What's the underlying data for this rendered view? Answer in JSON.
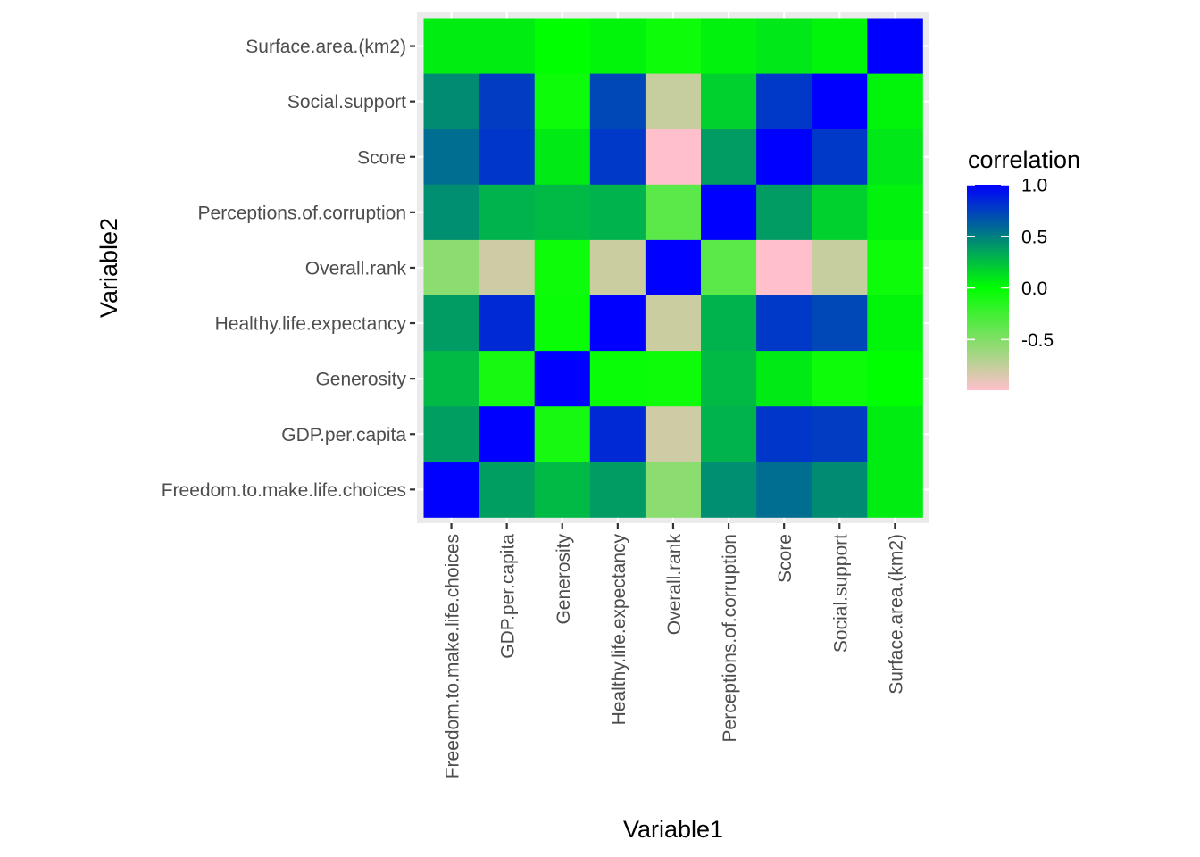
{
  "chart_data": {
    "type": "heatmap",
    "xlabel": "Variable1",
    "ylabel": "Variable2",
    "variables": [
      "Freedom.to.make.life.choices",
      "GDP.per.capita",
      "Generosity",
      "Healthy.life.expectancy",
      "Overall.rank",
      "Perceptions.of.corruption",
      "Score",
      "Social.support",
      "Surface.area.(km2)"
    ],
    "matrix": [
      [
        1.0,
        0.38,
        0.27,
        0.39,
        -0.54,
        0.44,
        0.57,
        0.45,
        0.07
      ],
      [
        0.38,
        1.0,
        -0.08,
        0.84,
        -0.8,
        0.3,
        0.79,
        0.76,
        0.07
      ],
      [
        0.27,
        -0.08,
        1.0,
        -0.03,
        -0.05,
        0.27,
        0.08,
        -0.05,
        0.0
      ],
      [
        0.39,
        0.84,
        -0.03,
        1.0,
        -0.78,
        0.3,
        0.78,
        0.72,
        0.04
      ],
      [
        -0.54,
        -0.8,
        -0.05,
        -0.78,
        1.0,
        -0.35,
        -0.99,
        -0.77,
        -0.05
      ],
      [
        0.44,
        0.3,
        0.27,
        0.3,
        -0.35,
        1.0,
        0.39,
        0.18,
        0.05
      ],
      [
        0.57,
        0.79,
        0.08,
        0.78,
        -0.99,
        0.39,
        1.0,
        0.78,
        0.09
      ],
      [
        0.45,
        0.76,
        -0.05,
        0.72,
        -0.77,
        0.18,
        0.78,
        1.0,
        0.04
      ],
      [
        0.07,
        0.07,
        0.0,
        0.04,
        -0.05,
        0.05,
        0.09,
        0.04,
        1.0
      ]
    ],
    "legend": {
      "title": "correlation",
      "breaks": [
        1.0,
        0.5,
        0.0,
        -0.5
      ],
      "labels": [
        "1.0",
        "0.5",
        "0.0",
        "-0.5"
      ],
      "limits": [
        -0.99,
        1.0
      ],
      "low_color": "#FFC0CB",
      "mid_color": "#00FF00",
      "high_color": "#0000FF",
      "mid_value": 0,
      "position": "right"
    },
    "panel_background": "#EBEBEB",
    "grid": true
  }
}
